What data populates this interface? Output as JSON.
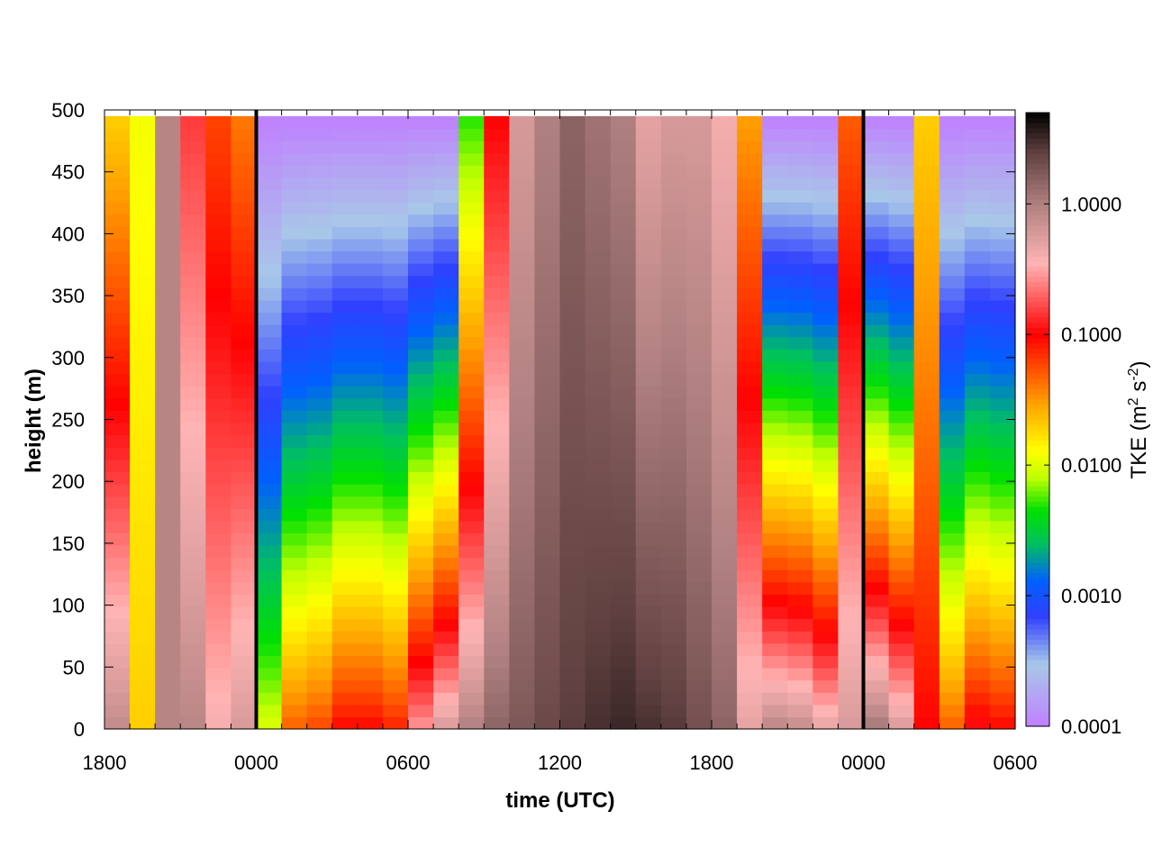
{
  "chart_data": {
    "type": "heatmap",
    "title": "",
    "xlabel": "time (UTC)",
    "ylabel": "height (m)",
    "x_tick_labels": [
      "1800",
      "0000",
      "0600",
      "1200",
      "1800",
      "0000",
      "0600"
    ],
    "x_range_hours": [
      0,
      36
    ],
    "y_ticks": [
      0,
      50,
      100,
      150,
      200,
      250,
      300,
      350,
      400,
      450,
      500
    ],
    "y_range": [
      0,
      500
    ],
    "data_top_height": 495,
    "vertical_markers_hours": [
      6,
      30
    ],
    "colorbar": {
      "label": "TKE (m",
      "label_sup1": "2",
      "label_mid": " s",
      "label_sup2": "-2",
      "label_end": ")",
      "scale": "log",
      "range": [
        0.0001,
        5.0
      ],
      "tick_labels": [
        "0.0001",
        "0.0010",
        "0.0100",
        "0.1000",
        "1.0000"
      ],
      "tick_values": [
        0.0001,
        0.001,
        0.01,
        0.1,
        1.0
      ],
      "colormap": [
        {
          "v": 0.0001,
          "color": "#c080ff"
        },
        {
          "v": 0.0003,
          "color": "#a8c8e8"
        },
        {
          "v": 0.0007,
          "color": "#3040ff"
        },
        {
          "v": 0.0013,
          "color": "#0060ff"
        },
        {
          "v": 0.0025,
          "color": "#00c060"
        },
        {
          "v": 0.0045,
          "color": "#00e000"
        },
        {
          "v": 0.008,
          "color": "#c0ff00"
        },
        {
          "v": 0.013,
          "color": "#ffff00"
        },
        {
          "v": 0.03,
          "color": "#ffa000"
        },
        {
          "v": 0.1,
          "color": "#ff0000"
        },
        {
          "v": 0.35,
          "color": "#ffb4b4"
        },
        {
          "v": 1.0,
          "color": "#b08080"
        },
        {
          "v": 2.5,
          "color": "#604040"
        },
        {
          "v": 5.0,
          "color": "#000000"
        }
      ]
    },
    "data_summary": "TKE (m2 s-2) vs time (hours since 1800 UTC) and height (m); 36 columns x 50 height bins of 10 m; values reconstructed from the color field",
    "columns": [
      {
        "t": 0.5,
        "surf": 0.8,
        "top": 0.02
      },
      {
        "t": 1.5,
        "surf": 0.02,
        "top": 0.012
      },
      {
        "t": 2.5,
        "surf": 0.9,
        "top": 0.9
      },
      {
        "t": 3.5,
        "surf": 0.9,
        "top": 0.15
      },
      {
        "t": 4.5,
        "surf": 0.4,
        "top": 0.06
      },
      {
        "t": 5.5,
        "surf": 0.6,
        "top": 0.04
      },
      {
        "t": 6.5,
        "surf": 0.01,
        "top": 0.0001
      },
      {
        "t": 7.5,
        "surf": 0.05,
        "top": 0.0001
      },
      {
        "t": 8.5,
        "surf": 0.06,
        "top": 0.0001
      },
      {
        "t": 9.5,
        "surf": 0.1,
        "top": 0.0001
      },
      {
        "t": 10.5,
        "surf": 0.1,
        "top": 0.0001
      },
      {
        "t": 11.5,
        "surf": 0.08,
        "top": 0.0001
      },
      {
        "t": 12.5,
        "surf": 0.3,
        "top": 0.0001
      },
      {
        "t": 13.5,
        "surf": 0.6,
        "top": 0.0001
      },
      {
        "t": 14.5,
        "surf": 1.0,
        "top": 0.005
      },
      {
        "t": 15.5,
        "surf": 1.5,
        "top": 0.1
      },
      {
        "t": 16.5,
        "surf": 1.8,
        "top": 0.6
      },
      {
        "t": 17.5,
        "surf": 2.2,
        "top": 1.0
      },
      {
        "t": 18.5,
        "surf": 2.6,
        "top": 1.5
      },
      {
        "t": 19.5,
        "surf": 3.0,
        "top": 1.2
      },
      {
        "t": 20.5,
        "surf": 3.3,
        "top": 1.0
      },
      {
        "t": 21.5,
        "surf": 3.0,
        "top": 0.5
      },
      {
        "t": 22.5,
        "surf": 2.7,
        "top": 0.6
      },
      {
        "t": 23.5,
        "surf": 2.0,
        "top": 0.6
      },
      {
        "t": 24.5,
        "surf": 1.5,
        "top": 0.4
      },
      {
        "t": 25.5,
        "surf": 0.5,
        "top": 0.03
      },
      {
        "t": 26.5,
        "surf": 0.9,
        "top": 0.0001
      },
      {
        "t": 27.5,
        "surf": 0.8,
        "top": 0.0001
      },
      {
        "t": 28.5,
        "surf": 0.5,
        "top": 0.0001
      },
      {
        "t": 29.5,
        "surf": 0.6,
        "top": 0.05
      },
      {
        "t": 30.5,
        "surf": 1.2,
        "top": 0.0001
      },
      {
        "t": 31.5,
        "surf": 0.6,
        "top": 0.0001
      },
      {
        "t": 32.5,
        "surf": 0.1,
        "top": 0.02
      },
      {
        "t": 33.5,
        "surf": 0.05,
        "top": 0.0001
      },
      {
        "t": 34.5,
        "surf": 0.12,
        "top": 0.0001
      },
      {
        "t": 35.5,
        "surf": 0.1,
        "top": 0.0001
      }
    ]
  }
}
